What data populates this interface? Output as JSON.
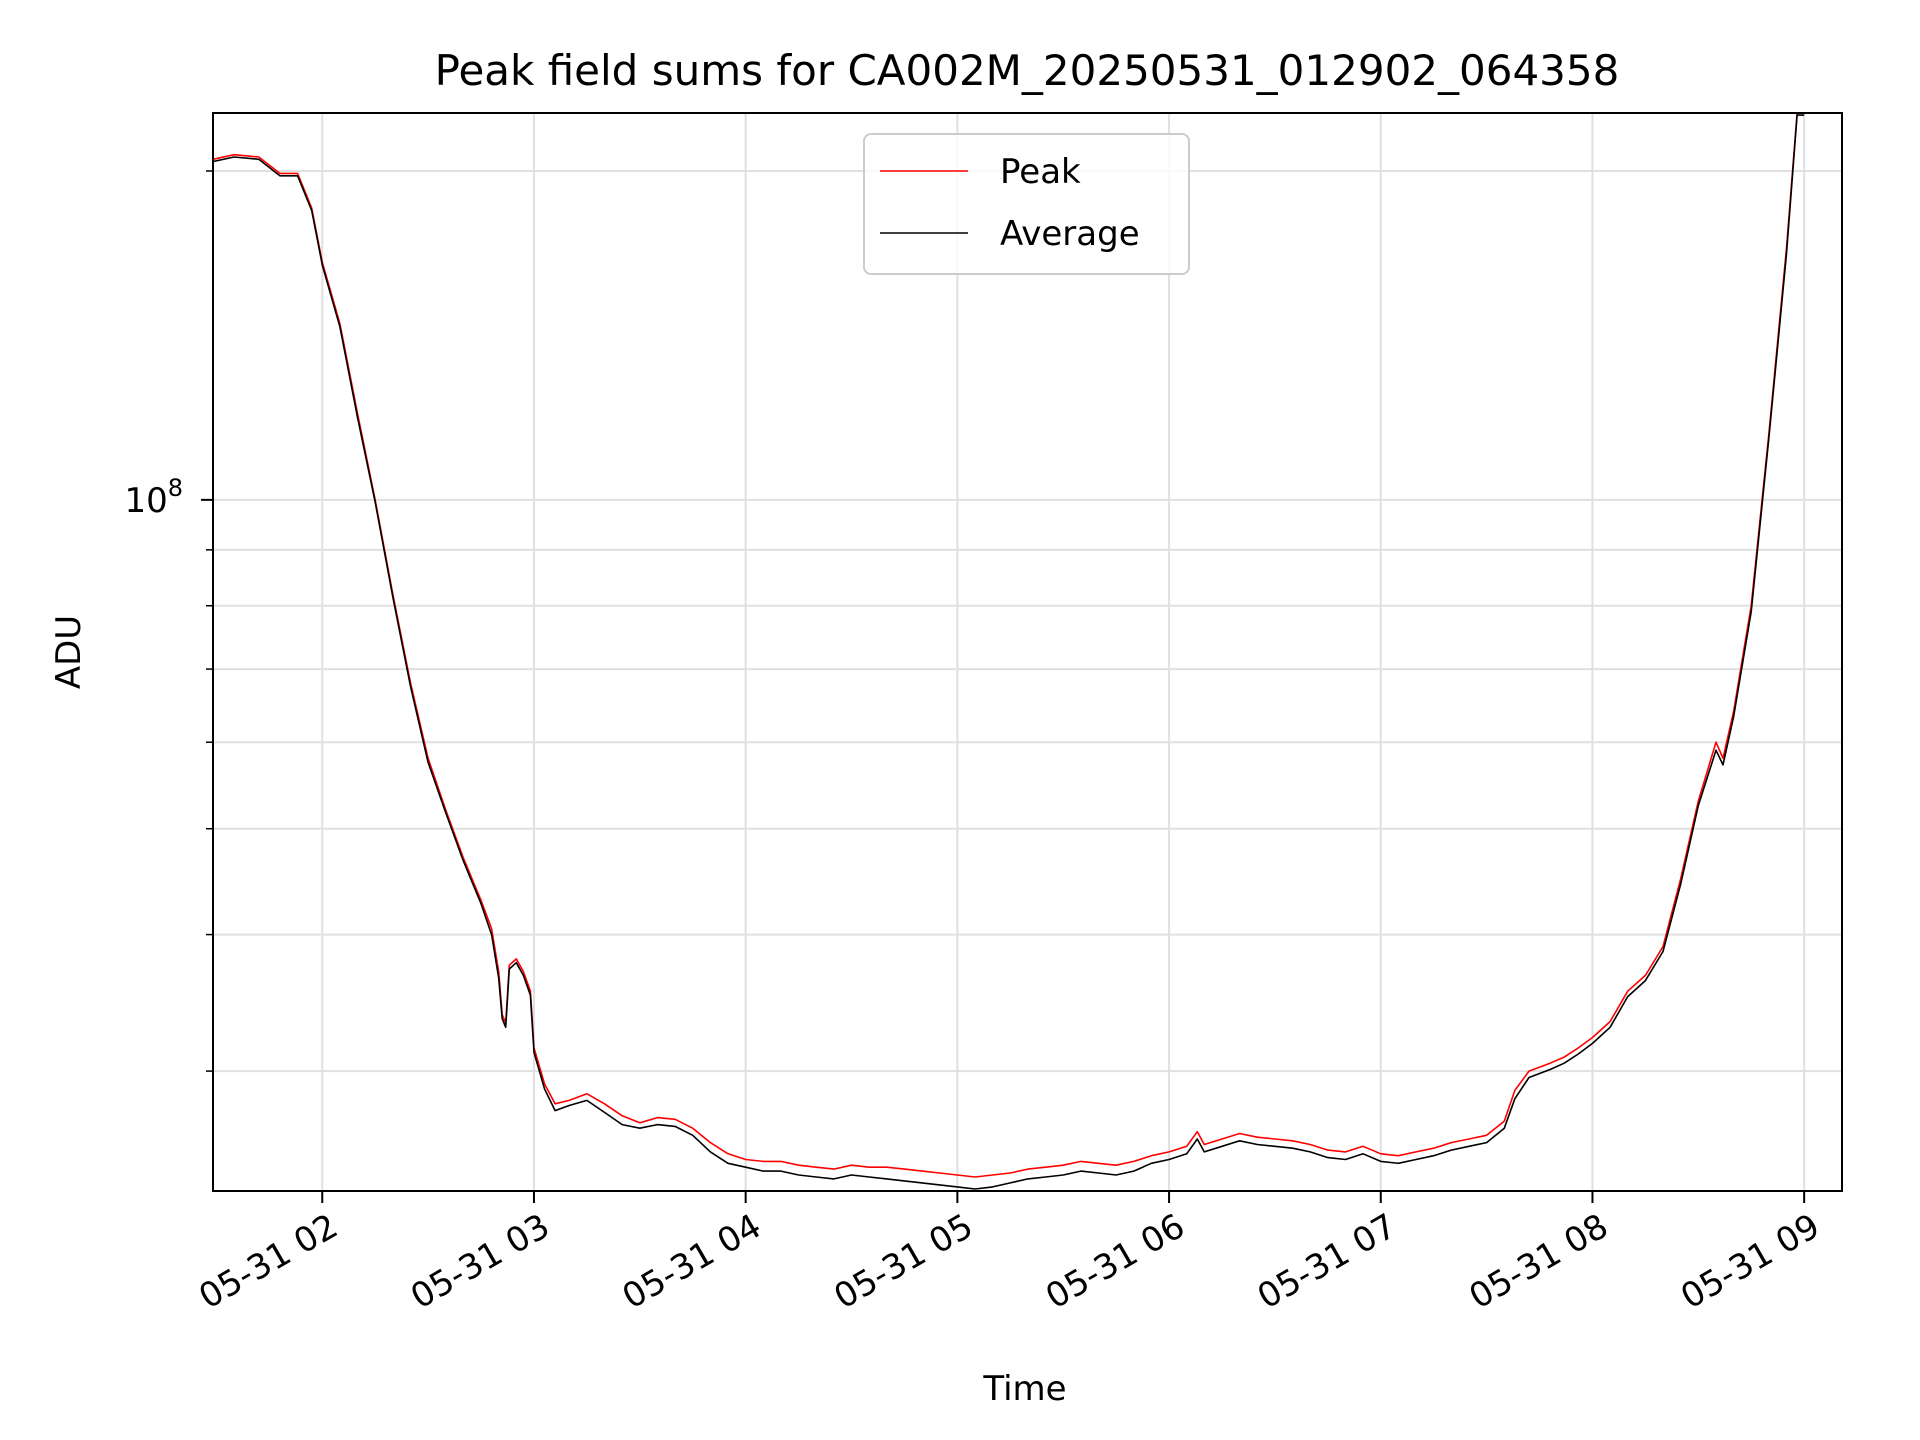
{
  "chart_data": {
    "type": "line",
    "title": "Peak field sums for CA002M_20250531_012902_064358",
    "xlabel": "Time",
    "ylabel": "ADU",
    "y_scale": "log",
    "ylim": [
      23300000,
      226000000
    ],
    "xlim": [
      "2025-05-31 01:29:02",
      "2025-05-31 09:00:00"
    ],
    "grid": true,
    "legend_position": "upper center",
    "x_ticks": [
      {
        "t": "2025-05-31 02:00",
        "label": "05-31 02"
      },
      {
        "t": "2025-05-31 03:00",
        "label": "05-31 03"
      },
      {
        "t": "2025-05-31 04:00",
        "label": "05-31 04"
      },
      {
        "t": "2025-05-31 05:00",
        "label": "05-31 05"
      },
      {
        "t": "2025-05-31 06:00",
        "label": "05-31 06"
      },
      {
        "t": "2025-05-31 07:00",
        "label": "05-31 07"
      },
      {
        "t": "2025-05-31 08:00",
        "label": "05-31 08"
      },
      {
        "t": "2025-05-31 09:00",
        "label": "05-31 09"
      }
    ],
    "y_major_ticks": [
      {
        "value": 100000000,
        "base": "10",
        "exp": "8"
      }
    ],
    "y_minor_ticks": [
      30000000,
      40000000,
      50000000,
      60000000,
      70000000,
      80000000,
      90000000,
      200000000
    ],
    "series": [
      {
        "name": "Peak",
        "color": "#ff0000",
        "points": [
          [
            "2025-05-31 01:29",
            205000000
          ],
          [
            "2025-05-31 01:35",
            207000000
          ],
          [
            "2025-05-31 01:42",
            206000000
          ],
          [
            "2025-05-31 01:48",
            199000000
          ],
          [
            "2025-05-31 01:53",
            199000000
          ],
          [
            "2025-05-31 01:57",
            185000000
          ],
          [
            "2025-05-31 02:00",
            165000000
          ],
          [
            "2025-05-31 02:05",
            145000000
          ],
          [
            "2025-05-31 02:10",
            120000000
          ],
          [
            "2025-05-31 02:15",
            100000000
          ],
          [
            "2025-05-31 02:20",
            82000000
          ],
          [
            "2025-05-31 02:25",
            68000000
          ],
          [
            "2025-05-31 02:30",
            58000000
          ],
          [
            "2025-05-31 02:35",
            52000000
          ],
          [
            "2025-05-31 02:40",
            47000000
          ],
          [
            "2025-05-31 02:45",
            43000000
          ],
          [
            "2025-05-31 02:48",
            40500000
          ],
          [
            "2025-05-31 02:50",
            37000000
          ],
          [
            "2025-05-31 02:51",
            33800000
          ],
          [
            "2025-05-31 02:52",
            33200000
          ],
          [
            "2025-05-31 02:53",
            37500000
          ],
          [
            "2025-05-31 02:55",
            38000000
          ],
          [
            "2025-05-31 02:57",
            37000000
          ],
          [
            "2025-05-31 02:59",
            35500000
          ],
          [
            "2025-05-31 03:00",
            31500000
          ],
          [
            "2025-05-31 03:03",
            29200000
          ],
          [
            "2025-05-31 03:06",
            28000000
          ],
          [
            "2025-05-31 03:10",
            28200000
          ],
          [
            "2025-05-31 03:15",
            28600000
          ],
          [
            "2025-05-31 03:20",
            28000000
          ],
          [
            "2025-05-31 03:25",
            27300000
          ],
          [
            "2025-05-31 03:30",
            26900000
          ],
          [
            "2025-05-31 03:35",
            27200000
          ],
          [
            "2025-05-31 03:40",
            27100000
          ],
          [
            "2025-05-31 03:45",
            26600000
          ],
          [
            "2025-05-31 03:50",
            25800000
          ],
          [
            "2025-05-31 03:55",
            25200000
          ],
          [
            "2025-05-31 04:00",
            24900000
          ],
          [
            "2025-05-31 04:05",
            24800000
          ],
          [
            "2025-05-31 04:10",
            24800000
          ],
          [
            "2025-05-31 04:15",
            24600000
          ],
          [
            "2025-05-31 04:20",
            24500000
          ],
          [
            "2025-05-31 04:25",
            24400000
          ],
          [
            "2025-05-31 04:30",
            24600000
          ],
          [
            "2025-05-31 04:35",
            24500000
          ],
          [
            "2025-05-31 04:40",
            24500000
          ],
          [
            "2025-05-31 04:45",
            24400000
          ],
          [
            "2025-05-31 04:50",
            24300000
          ],
          [
            "2025-05-31 04:55",
            24200000
          ],
          [
            "2025-05-31 05:00",
            24100000
          ],
          [
            "2025-05-31 05:05",
            24000000
          ],
          [
            "2025-05-31 05:10",
            24100000
          ],
          [
            "2025-05-31 05:15",
            24200000
          ],
          [
            "2025-05-31 05:20",
            24400000
          ],
          [
            "2025-05-31 05:25",
            24500000
          ],
          [
            "2025-05-31 05:30",
            24600000
          ],
          [
            "2025-05-31 05:35",
            24800000
          ],
          [
            "2025-05-31 05:40",
            24700000
          ],
          [
            "2025-05-31 05:45",
            24600000
          ],
          [
            "2025-05-31 05:50",
            24800000
          ],
          [
            "2025-05-31 05:55",
            25100000
          ],
          [
            "2025-05-31 06:00",
            25300000
          ],
          [
            "2025-05-31 06:05",
            25600000
          ],
          [
            "2025-05-31 06:08",
            26400000
          ],
          [
            "2025-05-31 06:10",
            25700000
          ],
          [
            "2025-05-31 06:15",
            26000000
          ],
          [
            "2025-05-31 06:20",
            26300000
          ],
          [
            "2025-05-31 06:25",
            26100000
          ],
          [
            "2025-05-31 06:30",
            26000000
          ],
          [
            "2025-05-31 06:35",
            25900000
          ],
          [
            "2025-05-31 06:40",
            25700000
          ],
          [
            "2025-05-31 06:45",
            25400000
          ],
          [
            "2025-05-31 06:50",
            25300000
          ],
          [
            "2025-05-31 06:55",
            25600000
          ],
          [
            "2025-05-31 07:00",
            25200000
          ],
          [
            "2025-05-31 07:05",
            25100000
          ],
          [
            "2025-05-31 07:10",
            25300000
          ],
          [
            "2025-05-31 07:15",
            25500000
          ],
          [
            "2025-05-31 07:20",
            25800000
          ],
          [
            "2025-05-31 07:25",
            26000000
          ],
          [
            "2025-05-31 07:30",
            26200000
          ],
          [
            "2025-05-31 07:35",
            27000000
          ],
          [
            "2025-05-31 07:38",
            28800000
          ],
          [
            "2025-05-31 07:42",
            30000000
          ],
          [
            "2025-05-31 07:48",
            30500000
          ],
          [
            "2025-05-31 07:52",
            30900000
          ],
          [
            "2025-05-31 07:56",
            31500000
          ],
          [
            "2025-05-31 08:00",
            32200000
          ],
          [
            "2025-05-31 08:05",
            33300000
          ],
          [
            "2025-05-31 08:10",
            35500000
          ],
          [
            "2025-05-31 08:15",
            36700000
          ],
          [
            "2025-05-31 08:20",
            39000000
          ],
          [
            "2025-05-31 08:25",
            45000000
          ],
          [
            "2025-05-31 08:30",
            53000000
          ],
          [
            "2025-05-31 08:35",
            60000000
          ],
          [
            "2025-05-31 08:37",
            58000000
          ],
          [
            "2025-05-31 08:40",
            64000000
          ],
          [
            "2025-05-31 08:45",
            80000000
          ],
          [
            "2025-05-31 08:50",
            115000000
          ],
          [
            "2025-05-31 08:55",
            170000000
          ],
          [
            "2025-05-31 08:58",
            226000000
          ],
          [
            "2025-05-31 09:00",
            226000000
          ]
        ]
      },
      {
        "name": "Average",
        "color": "#000000",
        "points": [
          [
            "2025-05-31 01:29",
            204000000
          ],
          [
            "2025-05-31 01:35",
            206000000
          ],
          [
            "2025-05-31 01:42",
            205000000
          ],
          [
            "2025-05-31 01:48",
            198000000
          ],
          [
            "2025-05-31 01:53",
            198000000
          ],
          [
            "2025-05-31 01:57",
            184000000
          ],
          [
            "2025-05-31 02:00",
            164000000
          ],
          [
            "2025-05-31 02:05",
            144000000
          ],
          [
            "2025-05-31 02:10",
            119000000
          ],
          [
            "2025-05-31 02:15",
            99500000
          ],
          [
            "2025-05-31 02:20",
            81500000
          ],
          [
            "2025-05-31 02:25",
            67500000
          ],
          [
            "2025-05-31 02:30",
            57500000
          ],
          [
            "2025-05-31 02:35",
            51700000
          ],
          [
            "2025-05-31 02:40",
            46700000
          ],
          [
            "2025-05-31 02:45",
            42700000
          ],
          [
            "2025-05-31 02:48",
            40000000
          ],
          [
            "2025-05-31 02:50",
            36500000
          ],
          [
            "2025-05-31 02:51",
            33500000
          ],
          [
            "2025-05-31 02:52",
            32900000
          ],
          [
            "2025-05-31 02:53",
            37200000
          ],
          [
            "2025-05-31 02:55",
            37700000
          ],
          [
            "2025-05-31 02:57",
            36700000
          ],
          [
            "2025-05-31 02:59",
            35200000
          ],
          [
            "2025-05-31 03:00",
            31200000
          ],
          [
            "2025-05-31 03:03",
            28900000
          ],
          [
            "2025-05-31 03:06",
            27600000
          ],
          [
            "2025-05-31 03:10",
            27900000
          ],
          [
            "2025-05-31 03:15",
            28200000
          ],
          [
            "2025-05-31 03:20",
            27500000
          ],
          [
            "2025-05-31 03:25",
            26800000
          ],
          [
            "2025-05-31 03:30",
            26600000
          ],
          [
            "2025-05-31 03:35",
            26800000
          ],
          [
            "2025-05-31 03:40",
            26700000
          ],
          [
            "2025-05-31 03:45",
            26200000
          ],
          [
            "2025-05-31 03:50",
            25300000
          ],
          [
            "2025-05-31 03:55",
            24700000
          ],
          [
            "2025-05-31 04:00",
            24500000
          ],
          [
            "2025-05-31 04:05",
            24300000
          ],
          [
            "2025-05-31 04:10",
            24300000
          ],
          [
            "2025-05-31 04:15",
            24100000
          ],
          [
            "2025-05-31 04:20",
            24000000
          ],
          [
            "2025-05-31 04:25",
            23900000
          ],
          [
            "2025-05-31 04:30",
            24100000
          ],
          [
            "2025-05-31 04:35",
            24000000
          ],
          [
            "2025-05-31 04:40",
            23900000
          ],
          [
            "2025-05-31 04:45",
            23800000
          ],
          [
            "2025-05-31 04:50",
            23700000
          ],
          [
            "2025-05-31 04:55",
            23600000
          ],
          [
            "2025-05-31 05:00",
            23500000
          ],
          [
            "2025-05-31 05:05",
            23400000
          ],
          [
            "2025-05-31 05:10",
            23500000
          ],
          [
            "2025-05-31 05:15",
            23700000
          ],
          [
            "2025-05-31 05:20",
            23900000
          ],
          [
            "2025-05-31 05:25",
            24000000
          ],
          [
            "2025-05-31 05:30",
            24100000
          ],
          [
            "2025-05-31 05:35",
            24300000
          ],
          [
            "2025-05-31 05:40",
            24200000
          ],
          [
            "2025-05-31 05:45",
            24100000
          ],
          [
            "2025-05-31 05:50",
            24300000
          ],
          [
            "2025-05-31 05:55",
            24700000
          ],
          [
            "2025-05-31 06:00",
            24900000
          ],
          [
            "2025-05-31 06:05",
            25200000
          ],
          [
            "2025-05-31 06:08",
            26000000
          ],
          [
            "2025-05-31 06:10",
            25300000
          ],
          [
            "2025-05-31 06:15",
            25600000
          ],
          [
            "2025-05-31 06:20",
            25900000
          ],
          [
            "2025-05-31 06:25",
            25700000
          ],
          [
            "2025-05-31 06:30",
            25600000
          ],
          [
            "2025-05-31 06:35",
            25500000
          ],
          [
            "2025-05-31 06:40",
            25300000
          ],
          [
            "2025-05-31 06:45",
            25000000
          ],
          [
            "2025-05-31 06:50",
            24900000
          ],
          [
            "2025-05-31 06:55",
            25200000
          ],
          [
            "2025-05-31 07:00",
            24800000
          ],
          [
            "2025-05-31 07:05",
            24700000
          ],
          [
            "2025-05-31 07:10",
            24900000
          ],
          [
            "2025-05-31 07:15",
            25100000
          ],
          [
            "2025-05-31 07:20",
            25400000
          ],
          [
            "2025-05-31 07:25",
            25600000
          ],
          [
            "2025-05-31 07:30",
            25800000
          ],
          [
            "2025-05-31 07:35",
            26600000
          ],
          [
            "2025-05-31 07:38",
            28300000
          ],
          [
            "2025-05-31 07:42",
            29600000
          ],
          [
            "2025-05-31 07:48",
            30100000
          ],
          [
            "2025-05-31 07:52",
            30500000
          ],
          [
            "2025-05-31 07:56",
            31100000
          ],
          [
            "2025-05-31 08:00",
            31800000
          ],
          [
            "2025-05-31 08:05",
            32900000
          ],
          [
            "2025-05-31 08:10",
            35100000
          ],
          [
            "2025-05-31 08:15",
            36300000
          ],
          [
            "2025-05-31 08:20",
            38600000
          ],
          [
            "2025-05-31 08:25",
            44500000
          ],
          [
            "2025-05-31 08:30",
            52500000
          ],
          [
            "2025-05-31 08:35",
            59000000
          ],
          [
            "2025-05-31 08:37",
            57200000
          ],
          [
            "2025-05-31 08:40",
            63300000
          ],
          [
            "2025-05-31 08:45",
            79000000
          ],
          [
            "2025-05-31 08:50",
            114000000
          ],
          [
            "2025-05-31 08:55",
            168000000
          ],
          [
            "2025-05-31 08:58",
            225000000
          ],
          [
            "2025-05-31 09:00",
            225000000
          ]
        ]
      }
    ]
  }
}
